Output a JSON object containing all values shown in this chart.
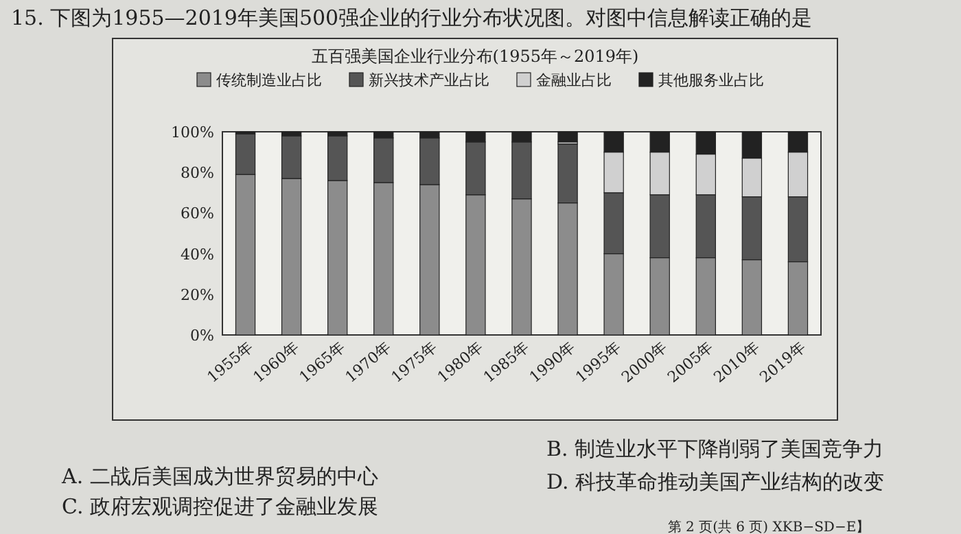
{
  "chart_data": {
    "type": "bar",
    "stacked": true,
    "title": "五百强美国企业行业分布(1955年～2019年)",
    "categories": [
      "1955年",
      "1960年",
      "1965年",
      "1970年",
      "1975年",
      "1980年",
      "1985年",
      "1990年",
      "1995年",
      "2000年",
      "2005年",
      "2010年",
      "2019年"
    ],
    "series": [
      {
        "name": "传统制造业占比",
        "color": "#8c8c8c",
        "values": [
          79,
          77,
          76,
          75,
          74,
          69,
          67,
          65,
          40,
          38,
          38,
          37,
          36
        ]
      },
      {
        "name": "新兴技术产业占比",
        "color": "#555555",
        "values": [
          20,
          21,
          22,
          22,
          23,
          26,
          28,
          29,
          30,
          31,
          31,
          31,
          32
        ]
      },
      {
        "name": "金融业占比",
        "color": "#d0d0d0",
        "values": [
          0,
          0,
          0,
          0,
          0,
          0,
          0,
          1,
          20,
          21,
          20,
          19,
          22
        ]
      },
      {
        "name": "其他服务业占比",
        "color": "#222222",
        "values": [
          1,
          2,
          2,
          3,
          3,
          5,
          5,
          5,
          10,
          10,
          11,
          13,
          10
        ]
      }
    ],
    "ylim": [
      0,
      100
    ],
    "yticks": [
      {
        "value": 0,
        "label": "0%"
      },
      {
        "value": 20,
        "label": "20%"
      },
      {
        "value": 40,
        "label": "40%"
      },
      {
        "value": 60,
        "label": "60%"
      },
      {
        "value": 80,
        "label": "80%"
      },
      {
        "value": 100,
        "label": "100%"
      }
    ],
    "grid": false,
    "legend": "top",
    "annotations": [
      "15. 下图为1955—2019年美国500强企业的行业分布状况图。对图中信息解读正确的是",
      "A. 二战后美国成为世界贸易的中心",
      "B. 制造业水平下降削弱了美国竞争力",
      "C. 政府宏观调控促进了金融业发展",
      "D. 科技革命推动美国产业结构的改变",
      "第 2 页(共 6 页)  XKB−SD−E】"
    ]
  }
}
